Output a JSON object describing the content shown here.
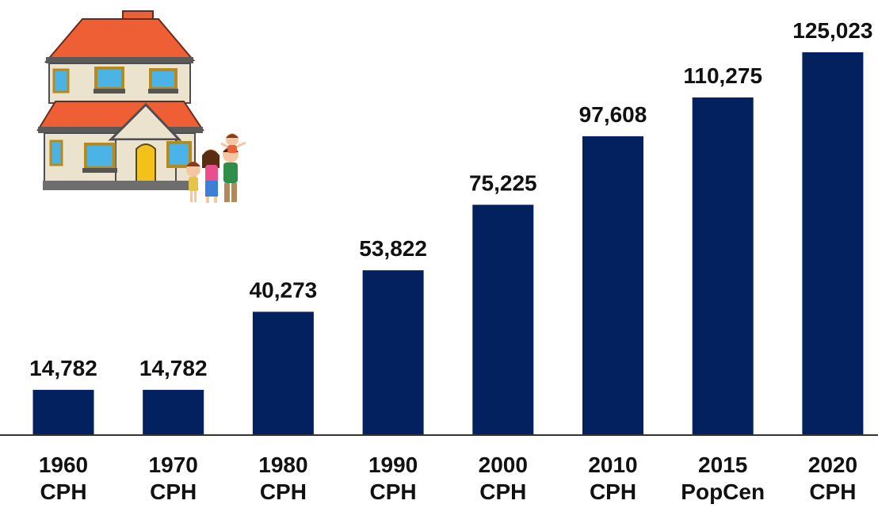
{
  "colors": {
    "bar": "#03215F",
    "axis": "#333333",
    "text": "#111111"
  },
  "illustration": "house-with-family-icon",
  "chart_data": {
    "type": "bar",
    "title": "",
    "xlabel": "",
    "ylabel": "",
    "categories": [
      [
        "1960",
        "CPH"
      ],
      [
        "1970",
        "CPH"
      ],
      [
        "1980",
        "CPH"
      ],
      [
        "1990",
        "CPH"
      ],
      [
        "2000",
        "CPH"
      ],
      [
        "2010",
        "CPH"
      ],
      [
        "2015",
        "PopCen"
      ],
      [
        "2020",
        "CPH"
      ]
    ],
    "values": [
      14782,
      14782,
      40273,
      53822,
      75225,
      97608,
      110275,
      125023
    ],
    "value_labels": [
      "14,782",
      "14,782",
      "40,273",
      "53,822",
      "75,225",
      "97,608",
      "110,275",
      "125,023"
    ],
    "ylim": [
      0,
      125023
    ],
    "grid": false,
    "legend": "none"
  }
}
